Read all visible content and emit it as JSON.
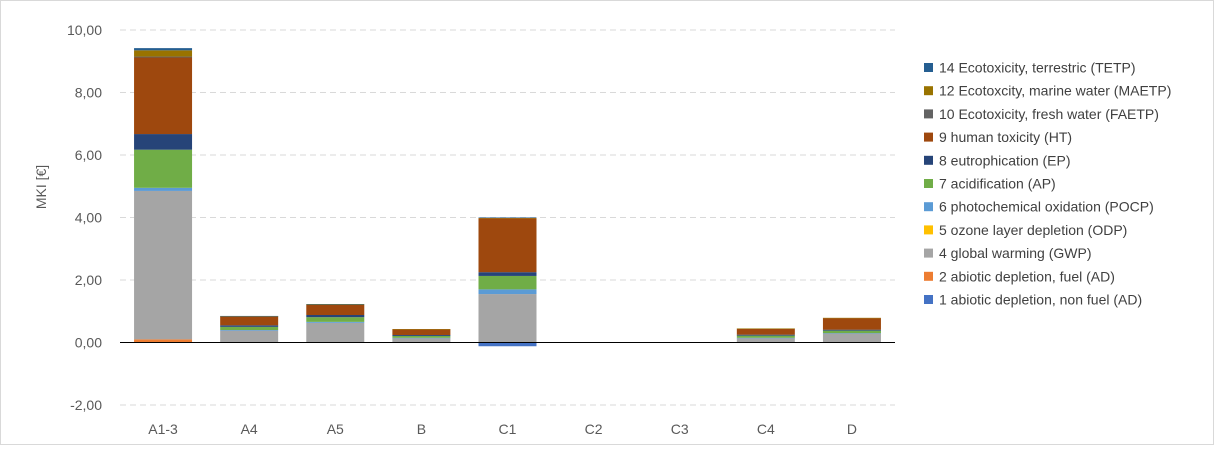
{
  "chart_data": {
    "type": "bar",
    "stacked": true,
    "title": "",
    "xlabel": "",
    "ylabel": "MKI [€]",
    "ylim": [
      -2,
      10
    ],
    "yticks": [
      "-2,00",
      "0,00",
      "2,00",
      "4,00",
      "6,00",
      "8,00",
      "10,00"
    ],
    "negative_tick_color": "#ff0000",
    "grid": "horizontal dashed",
    "legend_position": "right",
    "categories": [
      "A1-3",
      "A4",
      "A5",
      "B",
      "C1",
      "C2",
      "C3",
      "C4",
      "D"
    ],
    "series": [
      {
        "name": "1 abiotic depletion, non fuel (AD)",
        "color": "#4472c4",
        "values": [
          0.0,
          0.0,
          0.0,
          0.0,
          -0.12,
          0.0,
          0.0,
          0.0,
          0.0
        ]
      },
      {
        "name": "2 abiotic depletion, fuel (AD)",
        "color": "#ed7d31",
        "values": [
          0.1,
          0.0,
          0.0,
          0.0,
          0.0,
          0.0,
          0.0,
          0.0,
          0.0
        ]
      },
      {
        "name": "4 global warming (GWP)",
        "color": "#a5a5a5",
        "values": [
          4.75,
          0.38,
          0.63,
          0.14,
          1.55,
          0.0,
          0.0,
          0.14,
          0.29
        ]
      },
      {
        "name": "5 ozone layer depletion (ODP)",
        "color": "#ffc000",
        "values": [
          0.0,
          0.0,
          0.0,
          0.0,
          0.0,
          0.0,
          0.0,
          0.0,
          0.0
        ]
      },
      {
        "name": "6 photochemical oxidation (POCP)",
        "color": "#5b9bd5",
        "values": [
          0.1,
          0.02,
          0.03,
          0.01,
          0.15,
          0.0,
          0.0,
          0.01,
          0.01
        ]
      },
      {
        "name": "7 acidification (AP)",
        "color": "#70ad47",
        "values": [
          1.22,
          0.1,
          0.15,
          0.06,
          0.43,
          0.0,
          0.0,
          0.07,
          0.08
        ]
      },
      {
        "name": "8 eutrophication (EP)",
        "color": "#264478",
        "values": [
          0.5,
          0.05,
          0.07,
          0.03,
          0.12,
          0.0,
          0.0,
          0.03,
          0.03
        ]
      },
      {
        "name": "9 human toxicity (HT)",
        "color": "#9e480e",
        "values": [
          2.45,
          0.28,
          0.32,
          0.18,
          1.72,
          0.0,
          0.0,
          0.19,
          0.37
        ]
      },
      {
        "name": "10 Ecotoxicity, fresh water (FAETP)",
        "color": "#636363",
        "values": [
          0.03,
          0.0,
          0.0,
          0.0,
          0.0,
          0.0,
          0.0,
          0.0,
          0.0
        ]
      },
      {
        "name": "12 Ecotoxcity, marine water (MAETP)",
        "color": "#997300",
        "values": [
          0.2,
          0.01,
          0.02,
          0.01,
          0.02,
          0.0,
          0.0,
          0.01,
          0.01
        ]
      },
      {
        "name": "14 Ecotoxicity, terrestric (TETP)",
        "color": "#255e91",
        "values": [
          0.07,
          0.01,
          0.01,
          0.0,
          0.01,
          0.0,
          0.0,
          0.0,
          0.0
        ]
      }
    ]
  }
}
